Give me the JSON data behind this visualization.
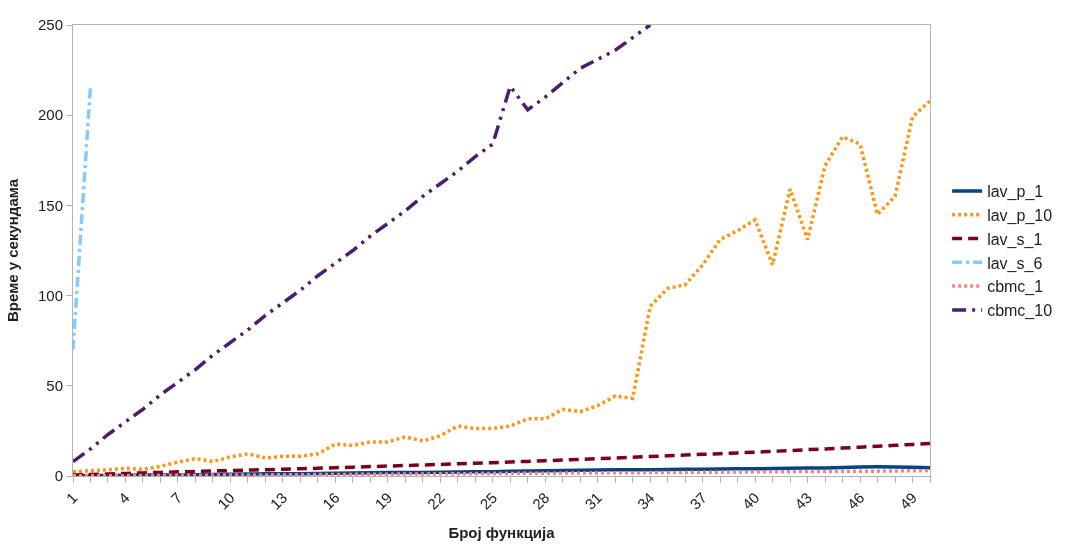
{
  "chart_data": {
    "type": "line",
    "xlabel": "Број функција",
    "ylabel": "Време у секундама",
    "x": [
      1,
      2,
      3,
      4,
      5,
      6,
      7,
      8,
      9,
      10,
      11,
      12,
      13,
      14,
      15,
      16,
      17,
      18,
      19,
      20,
      21,
      22,
      23,
      24,
      25,
      26,
      27,
      28,
      29,
      30,
      31,
      32,
      33,
      34,
      35,
      36,
      37,
      38,
      39,
      40,
      41,
      42,
      43,
      44,
      45,
      46,
      47,
      48,
      49,
      50
    ],
    "xlim": [
      1,
      50
    ],
    "xticks": [
      1,
      {
        "value": 2,
        "label": null
      },
      {
        "value": 3,
        "label": null
      },
      4,
      {
        "value": 5,
        "label": null
      },
      {
        "value": 6,
        "label": null
      },
      7,
      {
        "value": 8,
        "label": null
      },
      {
        "value": 9,
        "label": null
      },
      10,
      {
        "value": 11,
        "label": null
      },
      {
        "value": 12,
        "label": null
      },
      13,
      {
        "value": 14,
        "label": null
      },
      {
        "value": 15,
        "label": null
      },
      16,
      {
        "value": 17,
        "label": null
      },
      {
        "value": 18,
        "label": null
      },
      19,
      {
        "value": 20,
        "label": null
      },
      {
        "value": 21,
        "label": null
      },
      22,
      {
        "value": 23,
        "label": null
      },
      {
        "value": 24,
        "label": null
      },
      25,
      {
        "value": 26,
        "label": null
      },
      {
        "value": 27,
        "label": null
      },
      28,
      {
        "value": 29,
        "label": null
      },
      {
        "value": 30,
        "label": null
      },
      31,
      {
        "value": 32,
        "label": null
      },
      {
        "value": 33,
        "label": null
      },
      34,
      {
        "value": 35,
        "label": null
      },
      {
        "value": 36,
        "label": null
      },
      37,
      {
        "value": 38,
        "label": null
      },
      {
        "value": 39,
        "label": null
      },
      40,
      {
        "value": 41,
        "label": null
      },
      {
        "value": 42,
        "label": null
      },
      43,
      {
        "value": 44,
        "label": null
      },
      {
        "value": 45,
        "label": null
      },
      46,
      {
        "value": 47,
        "label": null
      },
      {
        "value": 48,
        "label": null
      },
      49,
      {
        "value": 50,
        "label": null
      }
    ],
    "ylim": [
      0,
      250
    ],
    "yticks": [
      0,
      50,
      100,
      150,
      200,
      250
    ],
    "legend": "right",
    "marker": "none",
    "series": [
      {
        "name": "lav_p_1",
        "color": "#004586",
        "line_style": "solid",
        "values": [
          0.2,
          0.3,
          0.3,
          0.4,
          0.5,
          0.5,
          0.6,
          0.7,
          0.8,
          1,
          1.1,
          1.2,
          1.2,
          1.3,
          1.4,
          1.5,
          1.6,
          1.8,
          1.9,
          2,
          2,
          2.1,
          2.2,
          2.3,
          2.4,
          2.6,
          2.8,
          2.9,
          3,
          3.2,
          3.3,
          3.4,
          3.4,
          3.5,
          3.6,
          3.7,
          3.8,
          3.9,
          4,
          4,
          4.1,
          4.3,
          4.4,
          4.5,
          4.7,
          5,
          5.1,
          5,
          4.8,
          4.6
        ]
      },
      {
        "name": "lav_p_10",
        "color": "#ff950e",
        "line_style": "dotted",
        "values": [
          2.3,
          3,
          3.4,
          4.3,
          3.7,
          5.4,
          7.7,
          9.7,
          8,
          10.6,
          12.3,
          10,
          10.9,
          10.9,
          12.3,
          17.7,
          16.9,
          18.9,
          18.9,
          21.7,
          19.4,
          22.3,
          27.7,
          26.3,
          26.3,
          27.7,
          31.7,
          31.7,
          36.9,
          35.7,
          39,
          44.3,
          43,
          94,
          104,
          106,
          117,
          131,
          136,
          142,
          117,
          159,
          131,
          172,
          188,
          184,
          145,
          155,
          199,
          208
        ]
      },
      {
        "name": "lav_s_1",
        "color": "#7e0021",
        "line_style": "dashed",
        "values": [
          0.5,
          0.8,
          1.1,
          1.4,
          1.7,
          2,
          2.3,
          2.5,
          2.8,
          3,
          3.3,
          3.5,
          3.8,
          4,
          4.3,
          4.6,
          4.9,
          5.2,
          5.5,
          5.8,
          6.1,
          6.4,
          6.8,
          7.1,
          7.4,
          7.8,
          8.1,
          8.5,
          8.8,
          9.2,
          9.6,
          10,
          10.4,
          10.8,
          11.2,
          11.6,
          12,
          12.4,
          12.8,
          13.2,
          13.7,
          14.1,
          14.6,
          15,
          15.5,
          16,
          16.5,
          17,
          17.5,
          18
        ]
      },
      {
        "name": "lav_s_6",
        "color": "#83caff",
        "line_style": "dashdot",
        "values": [
          70,
          216,
          null,
          null,
          null,
          null,
          null,
          null,
          null,
          null,
          null,
          null,
          null,
          null,
          null,
          null,
          null,
          null,
          null,
          null,
          null,
          null,
          null,
          null,
          null,
          null,
          null,
          null,
          null,
          null,
          null,
          null,
          null,
          null,
          null,
          null,
          null,
          null,
          null,
          null,
          null,
          null,
          null,
          null,
          null,
          null,
          null,
          null,
          null,
          null
        ]
      },
      {
        "name": "cbmc_1",
        "color": "#ff8080",
        "line_style": "dotted",
        "values": [
          0.1,
          0.1,
          0.2,
          0.2,
          0.3,
          0.3,
          0.4,
          0.4,
          0.5,
          0.5,
          0.6,
          0.6,
          0.7,
          0.7,
          0.8,
          0.8,
          0.9,
          1,
          1,
          1.1,
          1.1,
          1.2,
          1.2,
          1.3,
          1.4,
          1.4,
          1.5,
          1.5,
          1.6,
          1.7,
          1.7,
          1.8,
          1.8,
          1.9,
          2,
          2,
          2.1,
          2.1,
          2.2,
          2.3,
          2.3,
          2.4,
          2.5,
          2.5,
          2.6,
          2.7,
          2.7,
          2.8,
          2.9,
          3
        ]
      },
      {
        "name": "cbmc_10",
        "color": "#4b1f6f",
        "line_style": "dashdotdot",
        "values": [
          8,
          15,
          23,
          30,
          37,
          45,
          52,
          59,
          67,
          74,
          81,
          89,
          96,
          103,
          111,
          118,
          125,
          133,
          140,
          147,
          155,
          162,
          169,
          177,
          184,
          216,
          203,
          210,
          218,
          226,
          231,
          236,
          243,
          250,
          null,
          null,
          null,
          null,
          null,
          null,
          null,
          null,
          null,
          null,
          null,
          null,
          null,
          null,
          null,
          null
        ]
      }
    ]
  }
}
